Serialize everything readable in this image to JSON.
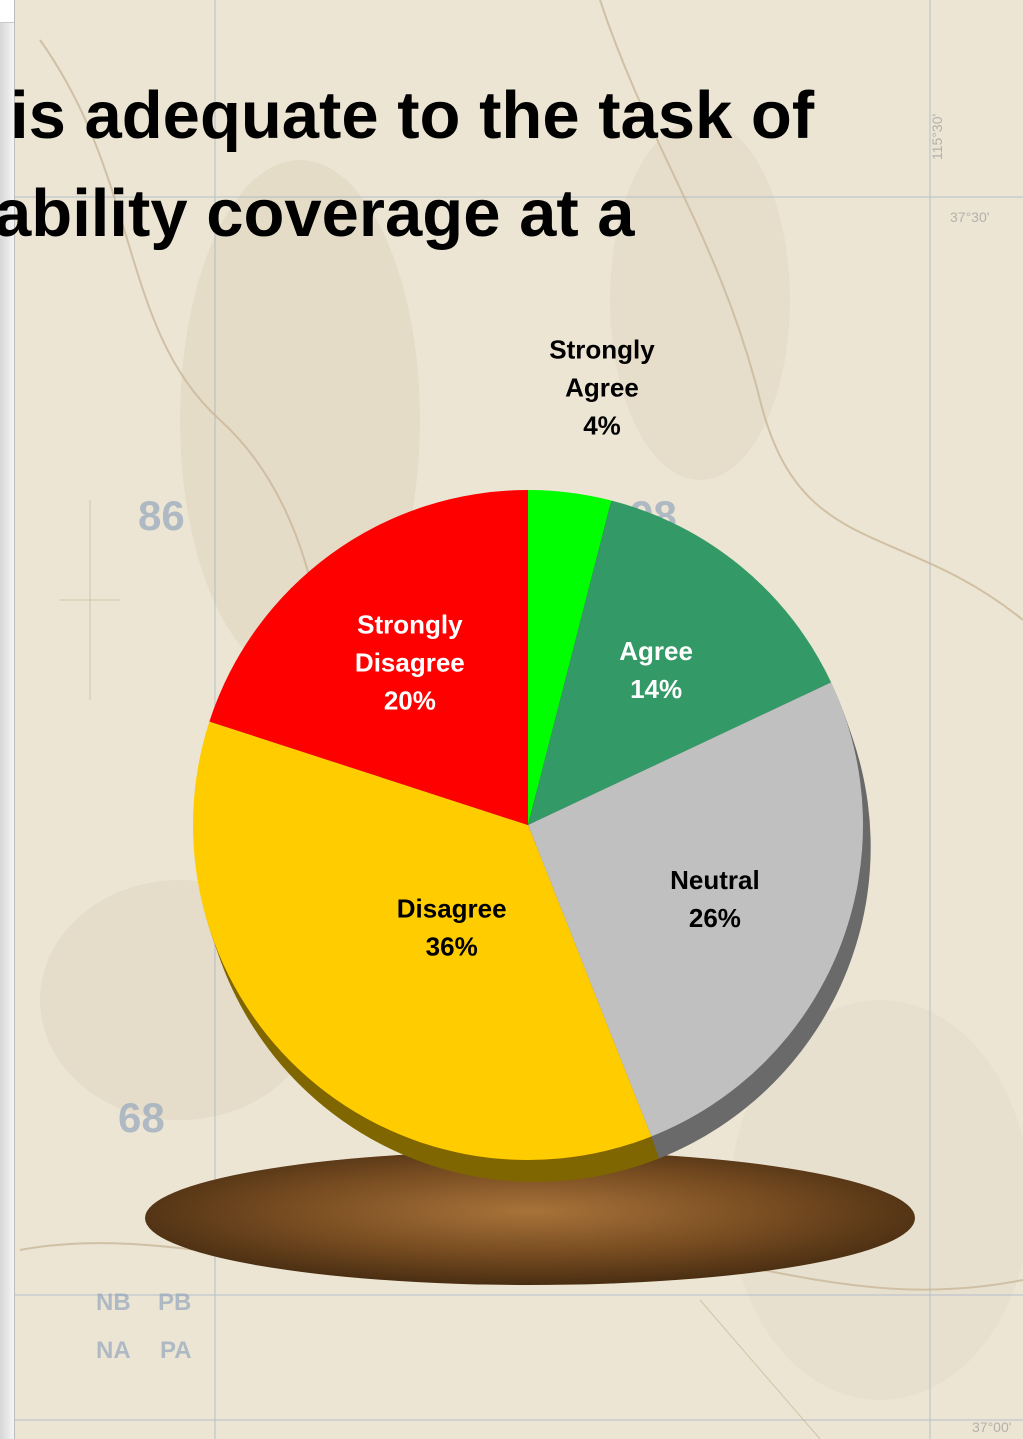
{
  "slide": {
    "title_line_1": "is adequate to the task of",
    "title_line_2": "ability coverage at a"
  },
  "map_labels": [
    "86",
    "98",
    "68",
    "NB",
    "PB",
    "NA",
    "PA",
    "37°30'",
    "37°00'",
    "115°30'"
  ],
  "chart_data": {
    "type": "pie",
    "title": "",
    "slices": [
      {
        "label_line_1": "Strongly",
        "label_line_2": "Agree",
        "value": 4,
        "value_label": "4%",
        "color": "#00ff00",
        "side_color": "#008800",
        "text_color": "#000000"
      },
      {
        "label_line_1": "Agree",
        "label_line_2": "",
        "value": 14,
        "value_label": "14%",
        "color": "#339966",
        "side_color": "#1f5c3d",
        "text_color": "#ffffff"
      },
      {
        "label_line_1": "Neutral",
        "label_line_2": "",
        "value": 26,
        "value_label": "26%",
        "color": "#c0c0c0",
        "side_color": "#6a6a6a",
        "text_color": "#000000"
      },
      {
        "label_line_1": "Disagree",
        "label_line_2": "",
        "value": 36,
        "value_label": "36%",
        "color": "#ffcc00",
        "side_color": "#806600",
        "text_color": "#000000"
      },
      {
        "label_line_1": "Strongly",
        "label_line_2": "Disagree",
        "value": 20,
        "value_label": "20%",
        "color": "#ff0000",
        "side_color": "#800000",
        "text_color": "#ffffff"
      }
    ],
    "pedestal_color": "#8a5a2a"
  }
}
